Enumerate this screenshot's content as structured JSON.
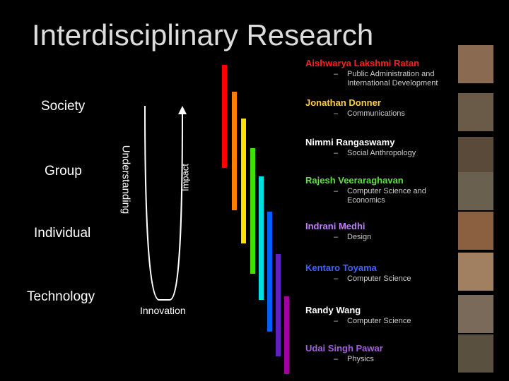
{
  "header": {
    "title": "Interdisciplinary Research"
  },
  "levels": [
    "Society",
    "Group",
    "Individual",
    "Technology"
  ],
  "axes": {
    "understanding": "Understanding",
    "impact": "Impact",
    "innovation": "Innovation"
  },
  "people": [
    {
      "name": "Aishwarya Lakshmi Ratan",
      "field": "Public Administration and International Development"
    },
    {
      "name": "Jonathan Donner",
      "field": "Communications"
    },
    {
      "name": "Nimmi Rangaswamy",
      "field": "Social Anthropology"
    },
    {
      "name": "Rajesh Veeraraghavan",
      "field": "Computer Science and Economics"
    },
    {
      "name": "Indrani Medhi",
      "field": "Design"
    },
    {
      "name": "Kentaro Toyama",
      "field": "Computer Science"
    },
    {
      "name": "Randy Wang",
      "field": "Computer Science"
    },
    {
      "name": "Udai Singh Pawar",
      "field": "Physics"
    }
  ]
}
